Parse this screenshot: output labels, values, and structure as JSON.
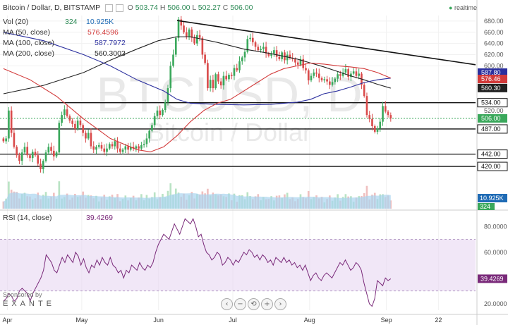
{
  "header": {
    "symbol": "Bitcoin / Dollar, D, BITSTAMP",
    "ohlc": {
      "o_label": "O",
      "o": "503.74",
      "h_label": "H",
      "h": "506.00",
      "l_label": "L",
      "l": "502.27",
      "c_label": "C",
      "c": "506.00"
    },
    "realtime": "realtime"
  },
  "legend": [
    {
      "label": "Vol (20)",
      "value1": "324",
      "value2": "10.925K",
      "color1": "#2e8b57",
      "color2": "#1f6bb5"
    },
    {
      "label": "MA (50, close)",
      "value1": "576.4596",
      "color1": "#d23a3a"
    },
    {
      "label": "MA (100, close)",
      "value1": "587.7972",
      "color1": "#2b2f9e"
    },
    {
      "label": "MA (200, close)",
      "value1": "560.3003",
      "color1": "#222222"
    }
  ],
  "watermark": {
    "big": "BTCUSD, D",
    "small": "Bitcoin / Dollar"
  },
  "rsi_legend": {
    "label": "RSI (14, close)",
    "value": "39.4269"
  },
  "sponsor": {
    "line1": "Sponsored by",
    "line2": "EXANTE"
  },
  "nav_buttons": [
    "‹",
    "−",
    "⟲",
    "+",
    "›"
  ],
  "colors": {
    "up": "#3aa85b",
    "down": "#d94b4b",
    "ma50": "#d23a3a",
    "ma100": "#2b2f9e",
    "ma200": "#222222",
    "rsi": "#7a2a7a",
    "rsi_band": "#e8d7f2",
    "vol_area": "#a9d4f0"
  },
  "chart_data": [
    {
      "type": "candlestick",
      "price_axis": {
        "min": 410,
        "max": 690,
        "ticks": [
          420,
          442,
          487,
          506,
          520,
          534,
          560.3,
          576.46,
          587.8,
          600,
          620,
          640,
          660,
          680
        ]
      },
      "price_tick_labels": [
        "420.00",
        "442.00",
        "487.00",
        "506.00",
        "520.00",
        "534.00",
        "560.30",
        "576.46",
        "587.80",
        "600.00",
        "620.00",
        "640.00",
        "660.00",
        "680.00"
      ],
      "highlight_labels": [
        {
          "value": 587.8,
          "text": "587.80",
          "color": "#2b2f9e"
        },
        {
          "value": 576.46,
          "text": "576.46",
          "color": "#d23a3a"
        },
        {
          "value": 560.3,
          "text": "560.30",
          "color": "#222222"
        },
        {
          "value": 534.0,
          "text": "534.00",
          "color": "#000000",
          "boxed": true
        },
        {
          "value": 506.0,
          "text": "506.00",
          "color": "#3aa85b"
        },
        {
          "value": 487.0,
          "text": "487.00",
          "color": "#000000",
          "boxed": true
        },
        {
          "value": 442.0,
          "text": "442.00",
          "color": "#000000",
          "boxed": true
        },
        {
          "value": 420.0,
          "text": "420.00",
          "color": "#000000",
          "boxed": true
        }
      ],
      "x_axis_labels": [
        {
          "label": "Apr",
          "day": 3
        },
        {
          "label": "May",
          "day": 33
        },
        {
          "label": "Jun",
          "day": 64
        },
        {
          "label": "Jul",
          "day": 94
        },
        {
          "label": "Aug",
          "day": 125
        },
        {
          "label": "Sep",
          "day": 156
        },
        {
          "label": "22",
          "day": 177
        }
      ],
      "day_range": [
        0,
        192
      ],
      "horizontal_levels": [
        534,
        487,
        442,
        420
      ],
      "trendline": {
        "from": {
          "day": 65,
          "value": 681
        },
        "to": {
          "day": 184,
          "value": 602
        }
      },
      "candles_close": [
        465,
        470,
        520,
        480,
        455,
        440,
        430,
        445,
        455,
        440,
        435,
        446,
        440,
        425,
        415,
        430,
        445,
        455,
        448,
        438,
        445,
        498,
        512,
        522,
        510,
        502,
        496,
        487,
        502,
        494,
        480,
        470,
        480,
        456,
        450,
        455,
        458,
        452,
        446,
        452,
        460,
        456,
        465,
        452,
        446,
        450,
        456,
        450,
        455,
        452,
        456,
        452,
        458,
        460,
        470,
        484,
        494,
        510,
        520,
        512,
        521,
        535,
        560,
        600,
        620,
        650,
        683,
        672,
        660,
        652,
        665,
        650,
        640,
        655,
        650,
        620,
        605,
        560,
        575,
        560,
        585,
        572,
        565,
        582,
        576,
        584,
        582,
        596,
        592,
        608,
        615,
        625,
        648,
        650,
        642,
        634,
        628,
        630,
        634,
        622,
        618,
        622,
        628,
        616,
        612,
        624,
        610,
        620,
        614,
        612,
        606,
        602,
        612,
        596,
        592,
        574,
        582,
        588,
        586,
        578,
        574,
        576,
        572,
        566,
        571,
        577,
        585,
        582,
        588,
        594,
        580,
        586,
        590,
        582,
        586,
        566,
        546,
        512,
        505,
        492,
        482,
        488,
        500,
        528,
        518,
        512,
        506
      ],
      "ma50": [
        [
          0,
          595
        ],
        [
          10,
          575
        ],
        [
          20,
          545
        ],
        [
          30,
          505
        ],
        [
          40,
          470
        ],
        [
          50,
          450
        ],
        [
          55,
          446
        ],
        [
          60,
          455
        ],
        [
          65,
          475
        ],
        [
          70,
          500
        ],
        [
          75,
          520
        ],
        [
          80,
          533
        ],
        [
          85,
          540
        ],
        [
          90,
          555
        ],
        [
          95,
          570
        ],
        [
          100,
          585
        ],
        [
          105,
          595
        ],
        [
          110,
          600
        ],
        [
          115,
          605
        ],
        [
          120,
          603
        ],
        [
          125,
          600
        ],
        [
          130,
          598
        ],
        [
          135,
          595
        ],
        [
          140,
          588
        ],
        [
          145,
          578
        ]
      ],
      "ma100": [
        [
          0,
          660
        ],
        [
          15,
          645
        ],
        [
          30,
          620
        ],
        [
          40,
          600
        ],
        [
          50,
          575
        ],
        [
          60,
          555
        ],
        [
          65,
          540
        ],
        [
          70,
          533
        ],
        [
          80,
          531
        ],
        [
          90,
          530
        ],
        [
          100,
          531
        ],
        [
          110,
          535
        ],
        [
          115,
          540
        ],
        [
          120,
          550
        ],
        [
          125,
          555
        ],
        [
          130,
          562
        ],
        [
          135,
          570
        ],
        [
          140,
          575
        ],
        [
          145,
          578
        ]
      ],
      "ma200": [
        [
          0,
          550
        ],
        [
          15,
          565
        ],
        [
          30,
          588
        ],
        [
          40,
          610
        ],
        [
          50,
          630
        ],
        [
          58,
          645
        ],
        [
          65,
          652
        ],
        [
          70,
          652
        ],
        [
          80,
          642
        ],
        [
          90,
          630
        ],
        [
          100,
          622
        ],
        [
          110,
          612
        ],
        [
          115,
          605
        ],
        [
          120,
          598
        ],
        [
          125,
          590
        ],
        [
          130,
          582
        ],
        [
          135,
          575
        ],
        [
          140,
          567
        ],
        [
          145,
          560
        ]
      ],
      "volume": {
        "last": "10.925K",
        "last_small": "324"
      }
    },
    {
      "type": "line",
      "name": "RSI (14, close)",
      "y_axis": {
        "min": 15,
        "max": 90,
        "ticks": [
          20,
          40,
          60,
          80
        ],
        "tick_labels": [
          "20.0000",
          "40.0000",
          "60.0000",
          "80.0000"
        ]
      },
      "band": [
        30,
        70
      ],
      "last_value": 39.4269,
      "values": [
        22,
        24,
        28,
        26,
        22,
        24,
        30,
        32,
        30,
        28,
        22,
        28,
        32,
        36,
        40,
        46,
        58,
        55,
        52,
        46,
        44,
        50,
        56,
        52,
        58,
        55,
        52,
        60,
        57,
        50,
        55,
        48,
        44,
        50,
        48,
        54,
        50,
        56,
        52,
        50,
        56,
        50,
        48,
        44,
        46,
        40,
        46,
        44,
        50,
        48,
        46,
        52,
        48,
        46,
        50,
        48,
        52,
        60,
        66,
        70,
        74,
        72,
        70,
        76,
        82,
        78,
        74,
        80,
        86,
        84,
        82,
        86,
        80,
        72,
        74,
        66,
        60,
        58,
        54,
        56,
        60,
        58,
        50,
        52,
        56,
        54,
        50,
        54,
        52,
        56,
        60,
        58,
        62,
        60,
        56,
        58,
        54,
        58,
        56,
        52,
        54,
        50,
        56,
        54,
        52,
        56,
        52,
        54,
        50,
        52,
        48,
        50,
        46,
        50,
        44,
        38,
        42,
        44,
        40,
        38,
        42,
        44,
        42,
        40,
        44,
        48,
        52,
        50,
        54,
        50,
        46,
        48,
        52,
        50,
        46,
        36,
        28,
        20,
        18,
        24,
        38,
        36,
        34,
        40,
        38,
        39.4
      ]
    }
  ]
}
